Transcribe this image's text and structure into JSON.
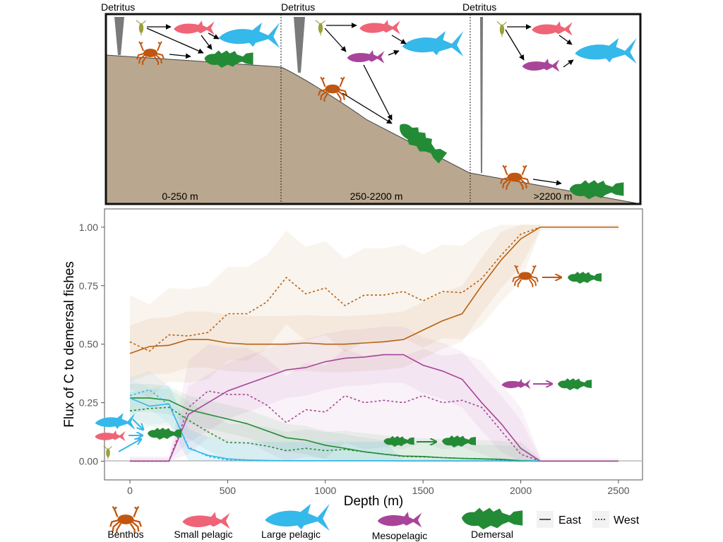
{
  "diagram": {
    "detritus_labels": [
      "Detritus",
      "Detritus",
      "Detritus"
    ],
    "zones": [
      "0-250 m",
      "250-2200 m",
      ">2200 m"
    ]
  },
  "legend": {
    "groups": [
      {
        "label": "Benthos",
        "color": "#c0560f"
      },
      {
        "label": "Small pelagic",
        "color": "#ef6476"
      },
      {
        "label": "Large pelagic",
        "color": "#35b8ea"
      },
      {
        "label": "Mesopelagic",
        "color": "#a8459a"
      },
      {
        "label": "Demersal",
        "color": "#238b35"
      }
    ],
    "east": "East",
    "west": "West"
  },
  "chart_data": {
    "type": "line",
    "xlabel": "Depth (m)",
    "ylabel": "Flux of C to demersal fishes",
    "xlim": [
      -130,
      2623
    ],
    "ylim": [
      -0.08,
      1.078
    ],
    "x_ticks": [
      "0",
      "500",
      "1000",
      "1500",
      "2000",
      "2500"
    ],
    "x_tick_values": [
      0,
      500,
      1000,
      1500,
      2000,
      2500
    ],
    "y_ticks": [
      "0.00",
      "0.25",
      "0.50",
      "0.75",
      "1.00"
    ],
    "y_tick_values": [
      0,
      0.25,
      0.5,
      0.75,
      1.0
    ],
    "grid": false,
    "x": [
      0,
      100,
      200,
      300,
      400,
      500,
      600,
      700,
      800,
      900,
      1000,
      1100,
      1200,
      1300,
      1400,
      1500,
      1600,
      1700,
      1800,
      1900,
      2000,
      2100,
      2200,
      2300,
      2400,
      2500
    ],
    "series": [
      {
        "name": "Benthos East",
        "group": "Benthos",
        "region": "East",
        "color": "#b8620f",
        "band": 0.12,
        "values": [
          0.46,
          0.49,
          0.495,
          0.52,
          0.52,
          0.505,
          0.5,
          0.5,
          0.5,
          0.505,
          0.5,
          0.5,
          0.505,
          0.51,
          0.52,
          0.56,
          0.6,
          0.63,
          0.75,
          0.86,
          0.95,
          1,
          1,
          1,
          1,
          1
        ]
      },
      {
        "name": "Benthos West",
        "group": "Benthos",
        "region": "West",
        "color": "#b8620f",
        "band": 0.2,
        "values": [
          0.51,
          0.47,
          0.54,
          0.535,
          0.55,
          0.63,
          0.63,
          0.68,
          0.785,
          0.715,
          0.74,
          0.665,
          0.71,
          0.71,
          0.725,
          0.685,
          0.725,
          0.72,
          0.78,
          0.88,
          0.97,
          1,
          null,
          null,
          null,
          null
        ]
      },
      {
        "name": "Mesopelagic East",
        "group": "Mesopelagic",
        "region": "East",
        "color": "#a8459a",
        "band": 0.12,
        "values": [
          0,
          0,
          0,
          0.2,
          0.25,
          0.3,
          0.33,
          0.36,
          0.39,
          0.4,
          0.425,
          0.44,
          0.445,
          0.455,
          0.455,
          0.41,
          0.385,
          0.35,
          0.25,
          0.16,
          0.055,
          0,
          0,
          0,
          0,
          0
        ]
      },
      {
        "name": "Mesopelagic West",
        "group": "Mesopelagic",
        "region": "West",
        "color": "#a8459a",
        "band": 0.2,
        "values": [
          0,
          0,
          0,
          0.23,
          0.3,
          0.285,
          0.285,
          0.24,
          0.165,
          0.22,
          0.21,
          0.28,
          0.25,
          0.26,
          0.25,
          0.28,
          0.25,
          0.26,
          0.23,
          0.13,
          0.03,
          0,
          null,
          null,
          null,
          null
        ]
      },
      {
        "name": "Demersal East",
        "group": "Demersal",
        "region": "East",
        "color": "#238b35",
        "band": 0.06,
        "values": [
          0.27,
          0.27,
          0.26,
          0.22,
          0.2,
          0.18,
          0.16,
          0.13,
          0.1,
          0.09,
          0.068,
          0.055,
          0.04,
          0.03,
          0.022,
          0.02,
          0.015,
          0.012,
          0.01,
          0.008,
          0.002,
          0,
          null,
          null,
          null,
          null
        ]
      },
      {
        "name": "Demersal West",
        "group": "Demersal",
        "region": "West",
        "color": "#238b35",
        "band": 0.08,
        "values": [
          0.215,
          0.225,
          0.23,
          0.175,
          0.125,
          0.08,
          0.078,
          0.065,
          0.045,
          0.055,
          0.045,
          0.05,
          0.04,
          0.03,
          0.02,
          0.018,
          0.015,
          0.012,
          0.01,
          0.006,
          0.002,
          0,
          null,
          null,
          null,
          null
        ]
      },
      {
        "name": "Pelagic East",
        "group": "Pelagic",
        "region": "East",
        "color": "#35b8ea",
        "band": 0.08,
        "values": [
          0.27,
          0.235,
          0.245,
          0.055,
          0.025,
          0.01,
          0.005,
          0.003,
          0.002,
          0.002,
          0.002,
          0.002,
          0.002,
          0.002,
          0.001,
          0.001,
          0.001,
          0.001,
          0.001,
          0.001,
          0,
          0,
          null,
          null,
          null,
          null
        ]
      },
      {
        "name": "Pelagic West",
        "group": "Pelagic",
        "region": "West",
        "color": "#35b8ea",
        "band": 0.08,
        "values": [
          0.28,
          0.305,
          0.24,
          0.06,
          0.02,
          0.005,
          0.003,
          0.002,
          0.002,
          0.002,
          0.002,
          0.002,
          0.002,
          0.002,
          0.001,
          0.001,
          0.001,
          0.001,
          0.001,
          0.001,
          0,
          0,
          null,
          null,
          null,
          null
        ]
      }
    ]
  }
}
